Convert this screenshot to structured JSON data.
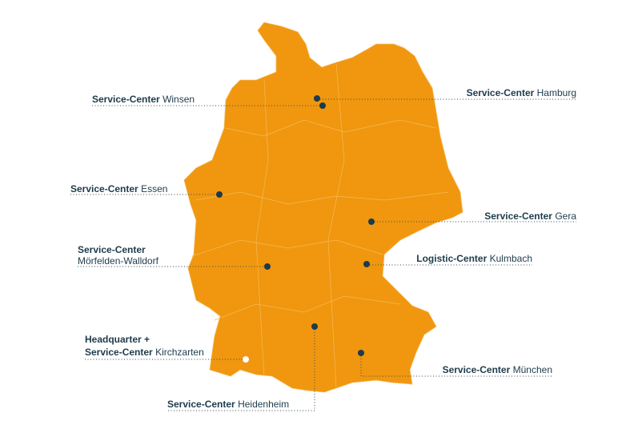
{
  "locations": [
    {
      "title": "Service-Center",
      "place": "Winsen"
    },
    {
      "title": "Service-Center",
      "place": "Hamburg"
    },
    {
      "title": "Service-Center",
      "place": "Essen"
    },
    {
      "title": "Service-Center",
      "place": "Gera"
    },
    {
      "title": "Logistic-Center",
      "place": "Kulmbach"
    },
    {
      "title": "Service-Center",
      "place": "Mörfelden-Walldorf"
    },
    {
      "title": "Headquarter +",
      "subtitle": "Service-Center",
      "place": "Kirchzarten"
    },
    {
      "title": "Service-Center",
      "place": "München"
    },
    {
      "title": "Service-Center",
      "place": "Heidenheim"
    }
  ]
}
